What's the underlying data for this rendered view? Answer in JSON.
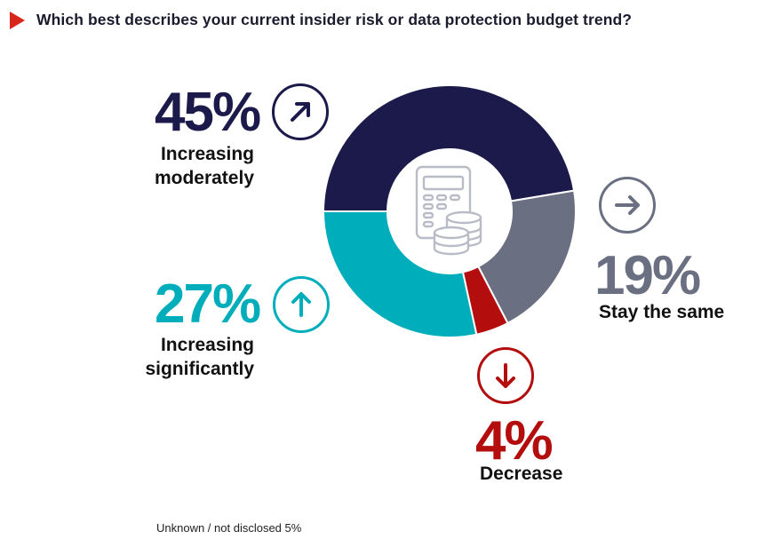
{
  "title": "Which best describes your current insider risk or data protection budget trend?",
  "footnote": "Unknown / not disclosed 5%",
  "colors": {
    "marker": "#d9261c",
    "increasing_moderately": "#1b1a4b",
    "stay_the_same": "#6b6f82",
    "decrease": "#b30d0d",
    "increasing_significantly": "#00adbb",
    "center_icon": "#b9bcc6"
  },
  "labels": {
    "moderate": {
      "pct": "45%",
      "line1": "Increasing",
      "line2": "moderately",
      "icon": "arrow-up-right-icon"
    },
    "significant": {
      "pct": "27%",
      "line1": "Increasing",
      "line2": "significantly",
      "icon": "arrow-up-icon"
    },
    "same": {
      "pct": "19%",
      "line1": "Stay the same",
      "icon": "arrow-right-icon"
    },
    "decrease": {
      "pct": "4%",
      "line1": "Decrease",
      "icon": "arrow-down-icon"
    }
  },
  "center_icon": "calculator-coins-icon",
  "chart_data": {
    "type": "pie",
    "variant": "donut",
    "title": "Which best describes your current insider risk or data protection budget trend?",
    "start_angle": "9 o'clock",
    "direction": "clockwise",
    "slices": [
      {
        "label": "Increasing moderately",
        "value": 45,
        "color": "#1b1a4b"
      },
      {
        "label": "Stay the same",
        "value": 19,
        "color": "#6b6f82"
      },
      {
        "label": "Decrease",
        "value": 4,
        "color": "#b30d0d"
      },
      {
        "label": "Increasing significantly",
        "value": 27,
        "color": "#00adbb"
      }
    ],
    "note": "Unknown / not disclosed 5%",
    "unit": "%"
  }
}
